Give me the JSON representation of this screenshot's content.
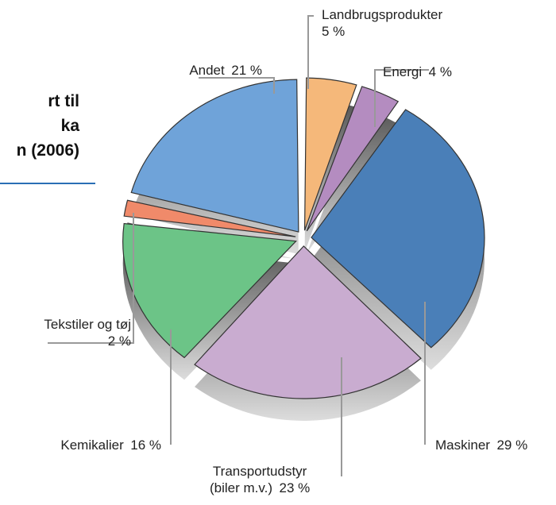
{
  "chart_data": {
    "type": "pie",
    "title": "rt til\nka\nn (2006)",
    "categories": [
      "Landbrugsprodukter",
      "Energi",
      "Maskiner",
      "Transportudstyr\n(biler m.v.)",
      "Kemikalier",
      "Tekstiler og tøj",
      "Andet"
    ],
    "values": [
      5,
      4,
      29,
      23,
      16,
      2,
      21
    ],
    "value_labels": [
      "5 %",
      "4 %",
      "29 %",
      "23 %",
      "16 %",
      "2 %",
      "21 %"
    ],
    "colors": [
      "#f5b87a",
      "#b48cc0",
      "#4a7fb8",
      "#c9acd0",
      "#6cc487",
      "#f08a6a",
      "#6fa3d9"
    ]
  }
}
